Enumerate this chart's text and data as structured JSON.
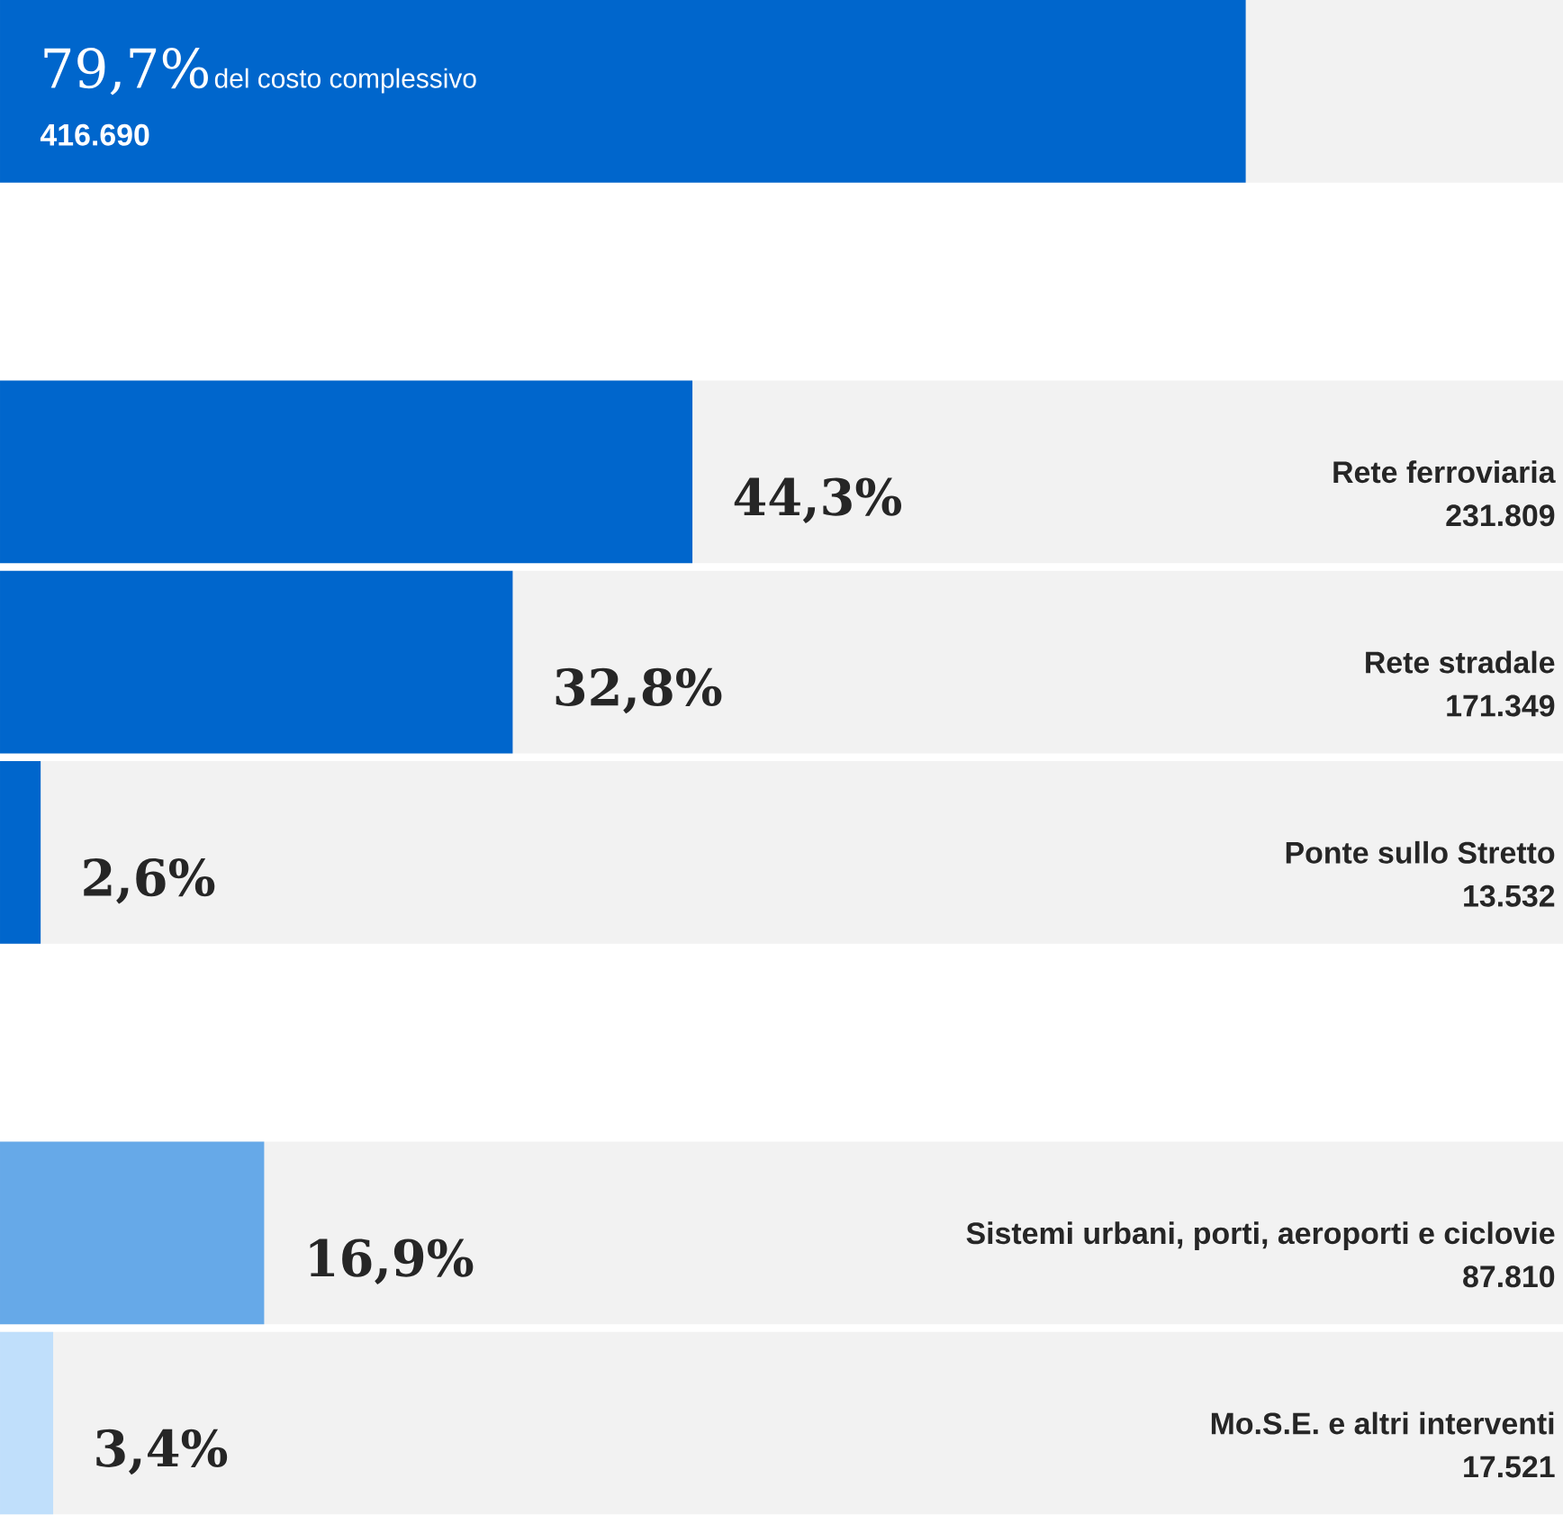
{
  "chart_data": {
    "type": "bar",
    "orientation": "horizontal",
    "categories": [
      "del costo complessivo",
      null,
      "Rete ferroviaria",
      "Rete stradale",
      "Ponte sullo Stretto",
      null,
      "Sistemi urbani, porti, aeroporti e ciclovie",
      "Mo.S.E. e altri interventi"
    ],
    "values": [
      79.7,
      null,
      44.3,
      32.8,
      2.6,
      null,
      16.9,
      3.4
    ],
    "colors": [
      "#0066cc",
      null,
      "#0066cc",
      "#0066cc",
      "#0066cc",
      null,
      "#66a9e8",
      "#c0dffb"
    ],
    "value_labels": [
      "79,7%",
      null,
      "44,3%",
      "32,8%",
      "2,6%",
      null,
      "16,9%",
      "3,4%"
    ],
    "annotations": [
      "416.690",
      "231.809",
      "171.349",
      "13.532",
      "87.810",
      "17.521"
    ],
    "xlim": [
      0,
      100
    ],
    "tick_labels": false
  }
}
